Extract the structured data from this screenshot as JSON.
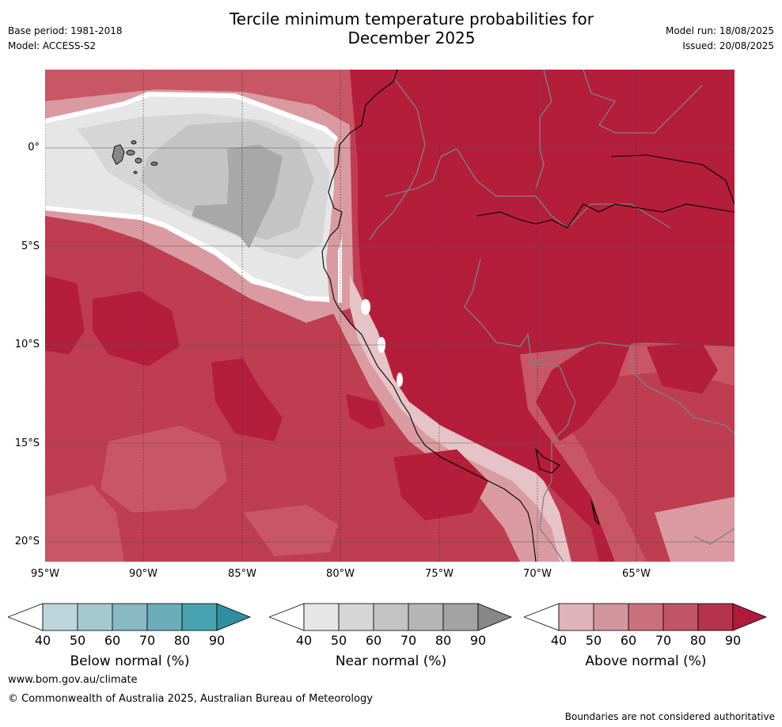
{
  "header": {
    "base_period": "Base period: 1981-2018",
    "model": "Model: ACCESS-S2",
    "title_line1": "Tercile minimum temperature probabilities for",
    "title_line2": "December 2025",
    "model_run": "Model run: 18/08/2025",
    "issued": "Issued: 20/08/2025"
  },
  "map": {
    "lat_labels": [
      "0°",
      "5°S",
      "10°S",
      "15°S",
      "20°S"
    ],
    "lon_labels": [
      "95°W",
      "90°W",
      "85°W",
      "80°W",
      "75°W",
      "70°W",
      "65°W"
    ],
    "colors": {
      "above_80_90": "#b51e3b",
      "above_70_80": "#bf3d51",
      "above_60_70": "#c95665",
      "above_50_60": "#cf737d",
      "above_40_50": "#d99ba1",
      "near_40_50": "#e6e6e6",
      "near_50_60": "#d6d6d6",
      "near_60_70": "#c4c4c4",
      "near_70_80": "#a8a8a8",
      "below_normal_white": "#ffffff"
    }
  },
  "colorbars": [
    {
      "title": "Below normal (%)",
      "ticks": [
        "40",
        "50",
        "60",
        "70",
        "80",
        "90"
      ],
      "colors": [
        "#ffffff",
        "#bcd6dc",
        "#a6c9d0",
        "#89b9c3",
        "#6badb9",
        "#48a1af",
        "#2f8f9f"
      ]
    },
    {
      "title": "Near normal (%)",
      "ticks": [
        "40",
        "50",
        "60",
        "70",
        "80",
        "90"
      ],
      "colors": [
        "#ffffff",
        "#e6e6e6",
        "#d6d6d6",
        "#c4c4c4",
        "#b5b5b5",
        "#a3a3a3",
        "#878787"
      ]
    },
    {
      "title": "Above normal (%)",
      "ticks": [
        "40",
        "50",
        "60",
        "70",
        "80",
        "90"
      ],
      "colors": [
        "#ffffff",
        "#dfb4b9",
        "#d3969c",
        "#c9707b",
        "#bf5566",
        "#b5334b",
        "#b01b3c"
      ]
    }
  ],
  "footer": {
    "url": "www.bom.gov.au/climate",
    "copyright": "© Commonwealth of Australia 2025, Australian Bureau of Meteorology",
    "disclaimer": "Boundaries are not considered authoritative"
  }
}
